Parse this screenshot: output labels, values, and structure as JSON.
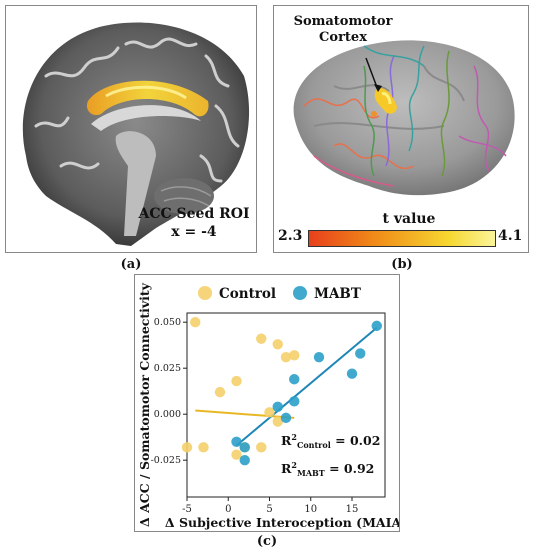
{
  "panel_a": {
    "roi_title": "ACC Seed ROI",
    "roi_coord": "x = -4",
    "caption": "(a)"
  },
  "panel_b": {
    "region_label_line1": "Somatomotor",
    "region_label_line2": "Cortex",
    "colorbar_title": "t value",
    "colorbar_min": "2.3",
    "colorbar_max": "4.1",
    "colorbar_colors": [
      "#e8401c",
      "#f08a18",
      "#f6d730",
      "#fbf59a"
    ],
    "caption": "(b)"
  },
  "panel_c": {
    "caption": "(c)"
  },
  "chart_data": {
    "type": "scatter",
    "xlabel": "Δ Subjective Interoception (MAIA)",
    "ylabel": "Δ ACC / Somatomotor Connectivity",
    "xlim": [
      -5,
      19
    ],
    "ylim": [
      -0.045,
      0.055
    ],
    "x_ticks": [
      "-5",
      "0",
      "5",
      "10",
      "15"
    ],
    "x_tick_values": [
      -5,
      0,
      5,
      10,
      15
    ],
    "y_ticks": [
      "0.050",
      "0.025",
      "0.000",
      "-0.025"
    ],
    "y_tick_values": [
      0.05,
      0.025,
      0.0,
      -0.025
    ],
    "legend_position": "top",
    "series": [
      {
        "name": "Control",
        "color": "#f5cf6a",
        "line_color": "#e8b824",
        "x": [
          -4,
          -5,
          -3,
          1,
          4,
          -1,
          6,
          7,
          4,
          6,
          8,
          1,
          2,
          5
        ],
        "y": [
          0.05,
          -0.018,
          -0.018,
          0.018,
          0.041,
          0.012,
          0.038,
          0.031,
          -0.018,
          -0.004,
          0.032,
          -0.022,
          -0.018,
          0.001
        ],
        "fit": {
          "x": [
            -4,
            8
          ],
          "y": [
            0.002,
            -0.002
          ]
        }
      },
      {
        "name": "MABT",
        "color": "#2ba0c8",
        "line_color": "#1f86b8",
        "x": [
          18,
          16,
          11,
          15,
          8,
          8,
          6,
          1,
          2,
          2,
          7
        ],
        "y": [
          0.048,
          0.033,
          0.031,
          0.022,
          0.019,
          0.007,
          0.004,
          -0.015,
          -0.018,
          -0.025,
          -0.002
        ],
        "fit": {
          "x": [
            1,
            18
          ],
          "y": [
            -0.017,
            0.047
          ]
        }
      }
    ],
    "annotations": [
      {
        "prefix": "R",
        "sup": "2",
        "sub": "Control",
        "suffix": " = 0.02"
      },
      {
        "prefix": "R",
        "sup": "2",
        "sub": "MABT",
        "suffix": " = 0.92"
      }
    ]
  }
}
